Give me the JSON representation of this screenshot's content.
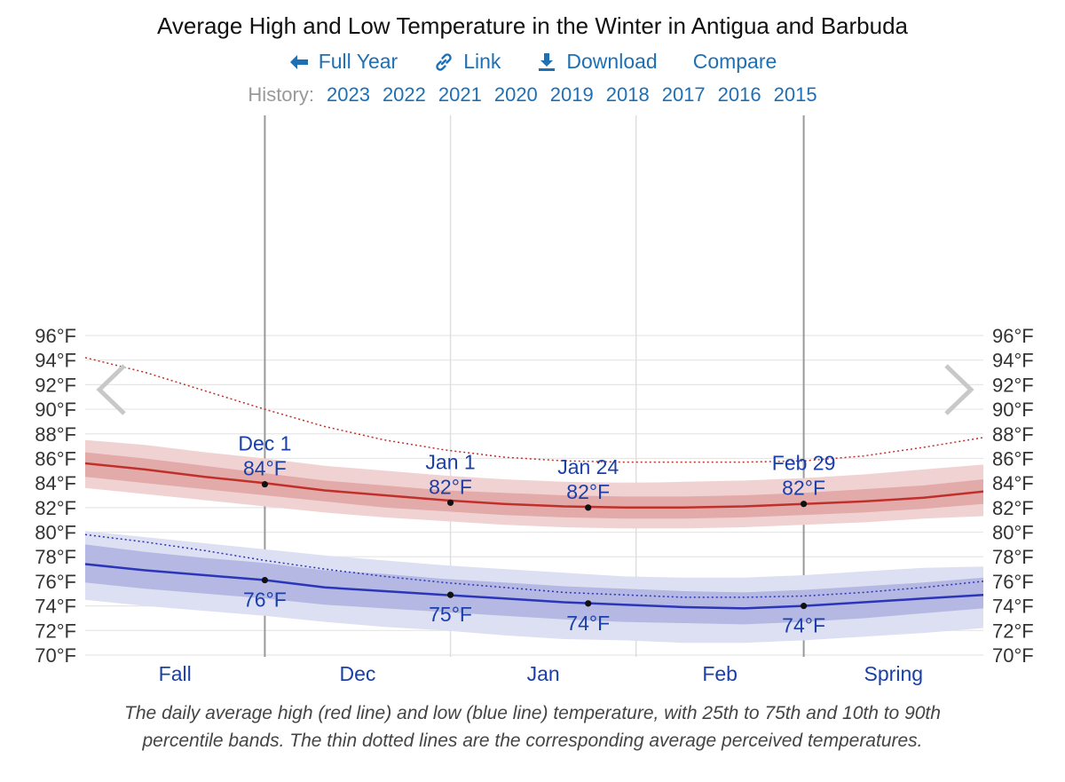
{
  "title": "Average High and Low Temperature in the Winter in Antigua and Barbuda",
  "toolbar": {
    "full_year": "Full Year",
    "link": "Link",
    "download": "Download",
    "compare": "Compare"
  },
  "history": {
    "label": "History:",
    "years": [
      "2023",
      "2022",
      "2021",
      "2020",
      "2019",
      "2018",
      "2017",
      "2016",
      "2015"
    ]
  },
  "caption": {
    "line1": "The daily average high (red line) and low (blue line) temperature, with 25th to 75th and 10th to 90th",
    "line2": "percentile bands. The thin dotted lines are the corresponding average perceived temperatures."
  },
  "colors": {
    "high": "#c0302b",
    "high_band_outer": "#f1d2d2",
    "high_band_inner": "#e3aaaa",
    "low": "#2b35b8",
    "low_band_outer": "#dddff2",
    "low_band_inner": "#b4b8e2",
    "label_blue": "#1a3fa8",
    "grid": "#e6e6e6"
  },
  "chart_data": {
    "type": "line",
    "ylim": [
      69,
      97
    ],
    "y_ticks": [
      70,
      72,
      74,
      76,
      78,
      80,
      82,
      84,
      86,
      88,
      90,
      92,
      94,
      96
    ],
    "y_tick_labels": [
      "70°F",
      "72°F",
      "74°F",
      "76°F",
      "78°F",
      "80°F",
      "82°F",
      "84°F",
      "86°F",
      "88°F",
      "90°F",
      "92°F",
      "94°F",
      "96°F"
    ],
    "x_days": [
      0,
      10,
      20,
      30,
      40,
      50,
      60,
      70,
      80,
      90,
      100,
      110,
      120,
      130,
      140,
      150
    ],
    "x_range": [
      0,
      150
    ],
    "separators": [
      {
        "day": 30,
        "type": "season"
      },
      {
        "day": 61,
        "type": "month"
      },
      {
        "day": 92,
        "type": "month"
      },
      {
        "day": 120,
        "type": "season"
      }
    ],
    "x_labels": [
      {
        "label": "Fall",
        "day": 15
      },
      {
        "label": "Dec",
        "day": 45.5
      },
      {
        "label": "Jan",
        "day": 76.5
      },
      {
        "label": "Feb",
        "day": 106
      },
      {
        "label": "Spring",
        "day": 135
      }
    ],
    "series": [
      {
        "name": "Average High",
        "values": [
          85.6,
          85.1,
          84.5,
          84.0,
          83.4,
          83.0,
          82.6,
          82.3,
          82.1,
          82.0,
          82.0,
          82.1,
          82.3,
          82.5,
          82.8,
          83.3
        ]
      },
      {
        "name": "Average Low",
        "values": [
          77.4,
          76.9,
          76.5,
          76.1,
          75.5,
          75.2,
          74.9,
          74.6,
          74.3,
          74.1,
          73.9,
          73.8,
          74.0,
          74.3,
          74.6,
          74.9
        ]
      },
      {
        "name": "High 25th percentile",
        "values": [
          84.5,
          84.0,
          83.5,
          83.0,
          82.5,
          82.0,
          81.7,
          81.4,
          81.2,
          81.1,
          81.1,
          81.2,
          81.4,
          81.6,
          81.9,
          82.3
        ]
      },
      {
        "name": "High 75th percentile",
        "values": [
          86.5,
          86.0,
          85.4,
          84.8,
          84.2,
          83.8,
          83.4,
          83.2,
          83.0,
          82.9,
          82.9,
          83.0,
          83.2,
          83.5,
          83.8,
          84.3
        ]
      },
      {
        "name": "High 10th percentile",
        "values": [
          83.6,
          83.1,
          82.6,
          82.1,
          81.6,
          81.2,
          80.9,
          80.6,
          80.4,
          80.3,
          80.3,
          80.4,
          80.6,
          80.8,
          81.1,
          81.3
        ]
      },
      {
        "name": "High 90th percentile",
        "values": [
          87.5,
          87.1,
          86.5,
          86.0,
          85.4,
          85.0,
          84.6,
          84.3,
          84.1,
          84.0,
          84.1,
          84.2,
          84.4,
          84.7,
          85.1,
          85.5
        ]
      },
      {
        "name": "Low 25th percentile",
        "values": [
          75.9,
          75.4,
          75.0,
          74.6,
          74.1,
          73.8,
          73.5,
          73.2,
          72.9,
          72.7,
          72.6,
          72.5,
          72.7,
          73.0,
          73.4,
          73.8
        ]
      },
      {
        "name": "Low 75th percentile",
        "values": [
          79.0,
          78.4,
          77.9,
          77.5,
          76.9,
          76.6,
          76.2,
          75.9,
          75.6,
          75.4,
          75.2,
          75.1,
          75.3,
          75.6,
          75.9,
          76.3
        ]
      },
      {
        "name": "Low 10th percentile",
        "values": [
          74.5,
          74.0,
          73.6,
          73.2,
          72.7,
          72.3,
          72.0,
          71.6,
          71.3,
          71.2,
          71.0,
          71.0,
          71.2,
          71.5,
          71.8,
          72.2
        ]
      },
      {
        "name": "Low 90th percentile",
        "values": [
          80.1,
          79.6,
          79.1,
          78.6,
          78.1,
          77.7,
          77.3,
          77.0,
          76.7,
          76.4,
          76.3,
          76.3,
          76.5,
          76.8,
          77.1,
          77.2
        ]
      },
      {
        "name": "Perceived High",
        "values": [
          94.2,
          93.0,
          91.5,
          90.0,
          88.6,
          87.5,
          86.7,
          86.1,
          85.8,
          85.7,
          85.7,
          85.7,
          85.8,
          86.2,
          86.9,
          87.7
        ]
      },
      {
        "name": "Perceived Low",
        "values": [
          79.8,
          79.2,
          78.5,
          77.7,
          77.0,
          76.4,
          75.9,
          75.5,
          75.1,
          74.9,
          74.7,
          74.7,
          74.8,
          75.1,
          75.5,
          76.0
        ]
      }
    ],
    "annotations": [
      {
        "date": "Dec 1",
        "value": "84°F",
        "day": 30,
        "temp": 83.9,
        "series": "high"
      },
      {
        "date": "Jan 1",
        "value": "82°F",
        "day": 61,
        "temp": 82.4,
        "series": "high"
      },
      {
        "date": "Jan 24",
        "value": "82°F",
        "day": 84,
        "temp": 82.0,
        "series": "high"
      },
      {
        "date": "Feb 29",
        "value": "82°F",
        "day": 120,
        "temp": 82.3,
        "series": "high"
      },
      {
        "date": "",
        "value": "76°F",
        "day": 30,
        "temp": 76.1,
        "series": "low"
      },
      {
        "date": "",
        "value": "75°F",
        "day": 61,
        "temp": 74.9,
        "series": "low"
      },
      {
        "date": "",
        "value": "74°F",
        "day": 84,
        "temp": 74.2,
        "series": "low"
      },
      {
        "date": "",
        "value": "74°F",
        "day": 120,
        "temp": 74.0,
        "series": "low"
      }
    ]
  }
}
